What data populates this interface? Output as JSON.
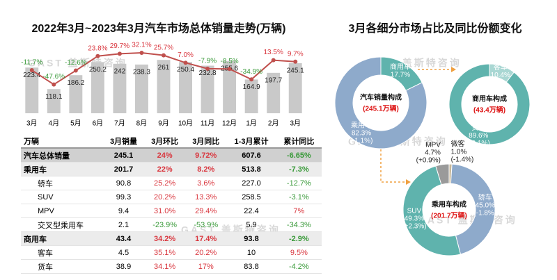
{
  "watermark": "GAST 盖斯特咨询",
  "chart_data": [
    {
      "type": "combo",
      "title": "2022年3月~2023年3月汽车市场总体销量走势(万辆)",
      "categories": [
        "3月",
        "4月",
        "5月",
        "6月",
        "7月",
        "8月",
        "9月",
        "10月",
        "11月",
        "12月",
        "1月",
        "2月",
        "3月"
      ],
      "ylim": [
        0,
        350
      ],
      "y2lim": [
        -120,
        60
      ],
      "series": [
        {
          "type": "bar",
          "color": "#c9c9c9",
          "values": [
            223.4,
            118.1,
            186.2,
            250.2,
            242,
            238.3,
            261,
            250.4,
            232.8,
            255.6,
            164.9,
            197.7,
            245.1
          ]
        },
        {
          "type": "line",
          "axis": "y2",
          "color": "#c0504d",
          "values": [
            -11.7,
            -47.6,
            -12.6,
            23.8,
            29.7,
            32.1,
            25.7,
            7.0,
            -7.9,
            -8.5,
            -34.9,
            13.5,
            9.7
          ],
          "value_labels": [
            "-11.7%",
            "-47.6%",
            "-12.6%",
            "23.8%",
            "29.7%",
            "32.1%",
            "25.7%",
            "7.0%",
            "-7.9%",
            "-8.5%",
            "-34.9%",
            "13.5%",
            "9.7%"
          ]
        }
      ]
    },
    {
      "type": "donut",
      "title": "汽车销量构成",
      "subtitle": "(245.1万辆)",
      "categories": [
        "商用车",
        "乘用车"
      ],
      "values": [
        17.7,
        82.3
      ],
      "value_labels": [
        "17.7%",
        "82.3%"
      ],
      "changes": [
        null,
        -1.1
      ],
      "change_labels": [
        null,
        "(-1.1%)"
      ],
      "colors": [
        "#5fb3ad",
        "#8eaacb"
      ]
    },
    {
      "type": "donut",
      "title": "商用车构成",
      "subtitle": "(43.4万辆)",
      "categories": [
        "客车",
        "货车"
      ],
      "values": [
        10.4,
        89.6
      ],
      "value_labels": [
        "10.4%",
        "89.6%"
      ],
      "changes": [
        null,
        -0.1
      ],
      "change_labels": [
        null,
        "(-0.1%)"
      ],
      "colors": [
        "#a9d7d3",
        "#5fb3ad"
      ]
    },
    {
      "type": "donut",
      "title": "乘用车构成",
      "subtitle": "(201.7万辆)",
      "categories": [
        "微客",
        "轿车",
        "SUV",
        "MPV"
      ],
      "values": [
        1.0,
        45.0,
        49.3,
        4.7
      ],
      "value_labels": [
        "1.0%",
        "45.0%",
        "49.3%",
        "4.7%"
      ],
      "changes": [
        -1.4,
        -1.8,
        2.3,
        0.9
      ],
      "change_labels": [
        "(-1.4%)",
        "(-1.8%)",
        "(+2.3%)",
        "(+0.9%)"
      ],
      "colors": [
        "#c8b99b",
        "#8eaacb",
        "#5fb3ad",
        "#9a9a9a"
      ]
    }
  ],
  "right_title": "3月各细分市场占比及同比份额变化",
  "table": {
    "header": [
      "万辆",
      "3月销量",
      "3月环比",
      "3月同比",
      "1-3月累计",
      "累计同比"
    ],
    "rows": [
      [
        "汽车总体销量",
        "245.1",
        "24%",
        "9.72%",
        "607.6",
        "-6.65%"
      ],
      [
        "乘用车",
        "201.7",
        "22%",
        "8.2%",
        "513.8",
        "-7.3%"
      ],
      [
        "轿车",
        "90.8",
        "25.2%",
        "3.6%",
        "227.0",
        "-12.7%"
      ],
      [
        "SUV",
        "99.3",
        "20.2%",
        "13.3%",
        "258.5",
        "-3.1%"
      ],
      [
        "MPV",
        "9.4",
        "31.0%",
        "29.4%",
        "22.4",
        "7%"
      ],
      [
        "交叉型乘用车",
        "2.1",
        "-23.9%",
        "-53.9%",
        "5.9",
        "-34.3%"
      ],
      [
        "商用车",
        "43.4",
        "34.2%",
        "17.4%",
        "93.8",
        "-2.9%"
      ],
      [
        "客车",
        "4.5",
        "35.1%",
        "20.2%",
        "10",
        "9.5%"
      ],
      [
        "货车",
        "38.9",
        "34.1%",
        "17%",
        "83.8",
        "-4.2%"
      ]
    ]
  }
}
